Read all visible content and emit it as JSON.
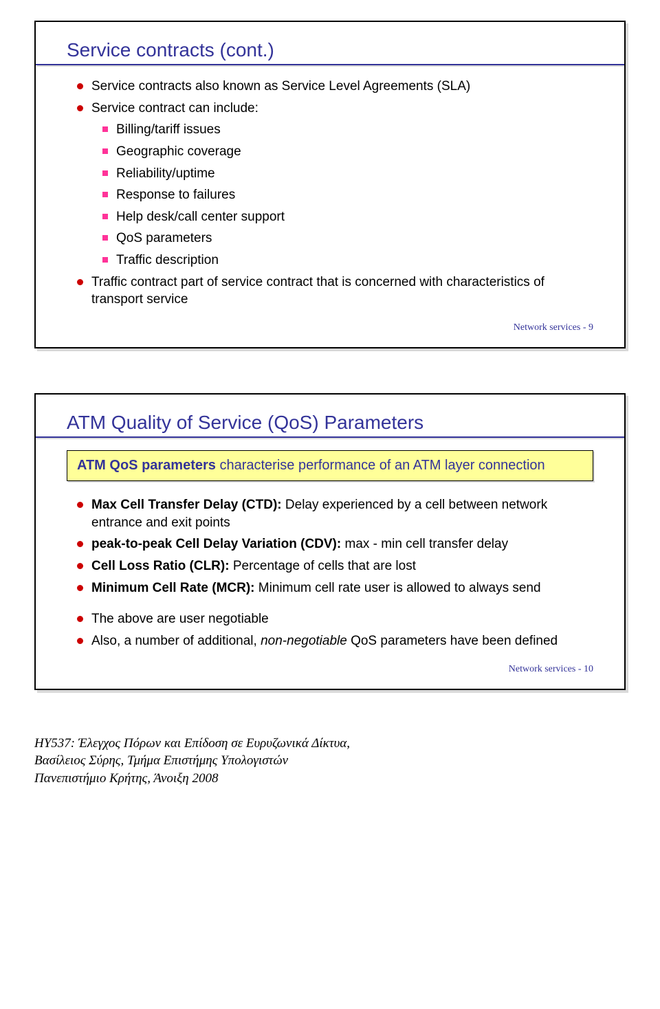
{
  "colors": {
    "title_blue": "#333399",
    "underline_blue": "#333399",
    "bullet_red": "#cc0000",
    "bullet_pink": "#ff3399",
    "text_black": "#000000",
    "callout_fill": "#ffff99",
    "callout_text_blue": "#333399"
  },
  "slide1": {
    "title": "Service contracts (cont.)",
    "bullets": [
      {
        "level": 1,
        "marker": "dot",
        "color": "#cc0000",
        "text": "Service contracts also known as Service Level Agreements (SLA)"
      },
      {
        "level": 1,
        "marker": "dot",
        "color": "#cc0000",
        "text": "Service contract can include:"
      },
      {
        "level": 2,
        "marker": "sq",
        "color": "#ff3399",
        "text": "Billing/tariff issues"
      },
      {
        "level": 2,
        "marker": "sq",
        "color": "#ff3399",
        "text": "Geographic coverage"
      },
      {
        "level": 2,
        "marker": "sq",
        "color": "#ff3399",
        "text": "Reliability/uptime"
      },
      {
        "level": 2,
        "marker": "sq",
        "color": "#ff3399",
        "text": "Response to failures"
      },
      {
        "level": 2,
        "marker": "sq",
        "color": "#ff3399",
        "text": "Help desk/call center support"
      },
      {
        "level": 2,
        "marker": "sq",
        "color": "#ff3399",
        "text": "QoS parameters"
      },
      {
        "level": 2,
        "marker": "sq",
        "color": "#ff3399",
        "text": "Traffic description"
      },
      {
        "level": 1,
        "marker": "dot",
        "color": "#cc0000",
        "text": "Traffic contract part of service contract that is concerned with characteristics of transport service"
      }
    ],
    "footer": "Network services - 9"
  },
  "slide2": {
    "title": "ATM Quality of Service (QoS) Parameters",
    "callout": {
      "bold": "ATM QoS parameters",
      "rest": " characterise performance of an ATM layer connection"
    },
    "bullets": [
      {
        "level": 1,
        "marker": "dot",
        "color": "#cc0000",
        "bold": "Max Cell Transfer Delay (CTD): ",
        "text": "Delay experienced by a cell between network entrance and exit points"
      },
      {
        "level": 1,
        "marker": "dot",
        "color": "#cc0000",
        "bold": "peak-to-peak Cell Delay Variation (CDV): ",
        "text": "max - min cell transfer delay"
      },
      {
        "level": 1,
        "marker": "dot",
        "color": "#cc0000",
        "bold": "Cell Loss Ratio (CLR): ",
        "text": "Percentage of cells that are lost"
      },
      {
        "level": 1,
        "marker": "dot",
        "color": "#cc0000",
        "bold": "Minimum Cell Rate (MCR): ",
        "text": "Minimum cell rate user is allowed to always send"
      }
    ],
    "bullets2": [
      {
        "level": 1,
        "marker": "dot",
        "color": "#cc0000",
        "text": "The above are user negotiable"
      },
      {
        "level": 1,
        "marker": "dot",
        "color": "#cc0000",
        "pre": "Also, a number of additional, ",
        "italic": "non-negotiable",
        "post": " QoS parameters have been defined"
      }
    ],
    "footer": "Network services - 10"
  },
  "page_footer": {
    "line1": "ΗΥ537: Έλεγχος Πόρων και Επίδοση σε Ευρυζωνικά Δίκτυα,",
    "line2": "Βασίλειος Σύρης, Τμήμα Επιστήμης Υπολογιστών",
    "line3": "Πανεπιστήμιο Κρήτης, Άνοιξη 2008"
  }
}
